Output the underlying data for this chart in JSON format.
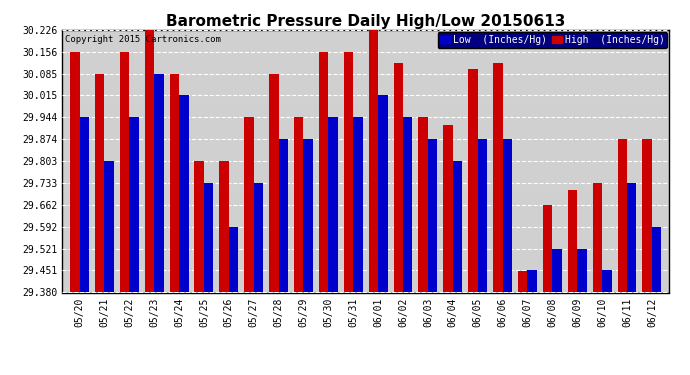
{
  "title": "Barometric Pressure Daily High/Low 20150613",
  "copyright": "Copyright 2015 Cartronics.com",
  "legend_low": "Low  (Inches/Hg)",
  "legend_high": "High  (Inches/Hg)",
  "low_color": "#0000cc",
  "high_color": "#cc0000",
  "background_color": "#ffffff",
  "plot_bg_color": "#d0d0d0",
  "grid_color": "#ffffff",
  "ymin": 29.38,
  "ymax": 30.226,
  "yticks": [
    29.38,
    29.451,
    29.521,
    29.592,
    29.662,
    29.733,
    29.803,
    29.874,
    29.944,
    30.015,
    30.085,
    30.156,
    30.226
  ],
  "dates": [
    "05/20",
    "05/21",
    "05/22",
    "05/23",
    "05/24",
    "05/25",
    "05/26",
    "05/27",
    "05/28",
    "05/29",
    "05/30",
    "05/31",
    "06/01",
    "06/02",
    "06/03",
    "06/04",
    "06/05",
    "06/06",
    "06/07",
    "06/08",
    "06/09",
    "06/10",
    "06/11",
    "06/12"
  ],
  "high": [
    30.155,
    30.085,
    30.155,
    30.226,
    30.085,
    29.803,
    29.803,
    29.944,
    30.085,
    29.944,
    30.156,
    30.155,
    30.226,
    30.12,
    29.944,
    29.92,
    30.1,
    30.12,
    29.45,
    29.662,
    29.71,
    29.733,
    29.874,
    29.874
  ],
  "low": [
    29.944,
    29.803,
    29.944,
    30.085,
    30.015,
    29.733,
    29.592,
    29.733,
    29.874,
    29.874,
    29.944,
    29.944,
    30.015,
    29.944,
    29.874,
    29.803,
    29.874,
    29.874,
    29.451,
    29.521,
    29.521,
    29.451,
    29.733,
    29.592
  ],
  "bar_width": 0.38,
  "title_fontsize": 11,
  "tick_fontsize": 7,
  "legend_fontsize": 7,
  "copyright_fontsize": 6.5
}
